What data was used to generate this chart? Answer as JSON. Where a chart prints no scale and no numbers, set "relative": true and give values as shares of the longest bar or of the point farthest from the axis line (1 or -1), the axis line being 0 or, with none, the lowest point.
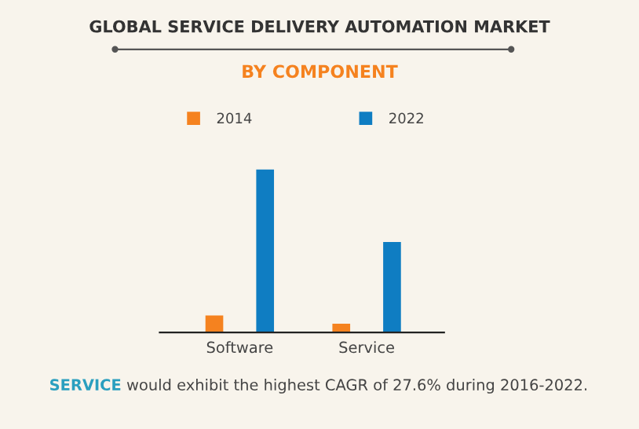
{
  "chart_data": {
    "type": "bar",
    "title": "GLOBAL SERVICE DELIVERY AUTOMATION MARKET",
    "subtitle": "BY COMPONENT",
    "categories": [
      "Software",
      "Service"
    ],
    "series": [
      {
        "name": "2014",
        "color": "#f5821f",
        "values": [
          0.105,
          0.054
        ]
      },
      {
        "name": "2022",
        "color": "#0f7dc2",
        "values": [
          1,
          0.556
        ]
      }
    ],
    "relative": true,
    "legend": "top",
    "marker": "square",
    "annotations": [
      "SERVICE would exhibit the highest CAGR of 27.6% during 2016-2022."
    ]
  }
}
